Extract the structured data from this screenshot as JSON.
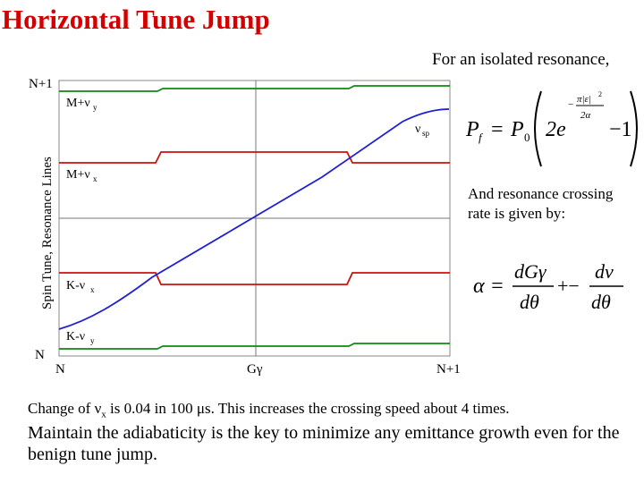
{
  "title": "Horizontal Tune Jump",
  "intro": "For an isolated resonance,",
  "formula1": {
    "lhs": "P",
    "lhs_sub": "f",
    "eq": "=",
    "p0": "P",
    "p0_sub": "0",
    "two_e": "2e",
    "exp_num": "π|ε|",
    "exp_sq": "2",
    "exp_den": "2α",
    "minus_one": "−1"
  },
  "rate_text": "And resonance crossing rate is given by:",
  "formula2": {
    "alpha_eq": "α =",
    "num1": "dGγ",
    "den1": "dθ",
    "sep": "+−",
    "num2": "dν",
    "den2": "dθ"
  },
  "figure": {
    "ylabel": "Spin Tune, Resonance Lines",
    "xtick_left": "N",
    "xtick_mid": "Gγ",
    "xtick_right": "N+1",
    "ytick_top": "N+1",
    "ytick_bottom": "N",
    "labels": {
      "m_vy": "M+ν",
      "m_vy_sub": "y",
      "m_vx": "M+ν",
      "m_vx_sub": "x",
      "k_vx": "K-ν",
      "k_vx_sub": "x",
      "k_vy": "K-ν",
      "k_vy_sub": "y",
      "vsp": "ν",
      "vsp_sub": "sp"
    },
    "colors": {
      "spin": "#2020d0",
      "horizontal": "#cc1111",
      "vertical": "#118811"
    }
  },
  "caption1": {
    "pre": "Change of ν",
    "sub": "x",
    "post": "  is 0.04 in 100 μs. This increases the crossing speed  about 4 times."
  },
  "caption2": "Maintain the adiabaticity is the key to minimize any emittance growth even for the benign tune jump."
}
